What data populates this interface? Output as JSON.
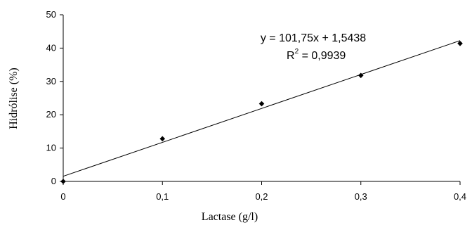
{
  "chart_data": {
    "type": "scatter",
    "title": "",
    "xlabel": "Lactase (g/l)",
    "ylabel": "Hidrólise (%)",
    "xlim": [
      0,
      0.4
    ],
    "ylim": [
      0,
      50
    ],
    "x_ticks": [
      0,
      0.1,
      0.2,
      0.3,
      0.4
    ],
    "x_tick_labels": [
      "0",
      "0,1",
      "0,2",
      "0,3",
      "0,4"
    ],
    "y_ticks": [
      0,
      10,
      20,
      30,
      40,
      50
    ],
    "y_tick_labels": [
      "0",
      "10",
      "20",
      "30",
      "40",
      "50"
    ],
    "grid": false,
    "series": [
      {
        "x": [
          0,
          0.1,
          0.2,
          0.3,
          0.4
        ],
        "y": [
          0,
          12.8,
          23.3,
          31.8,
          41.4
        ],
        "marker": "diamond",
        "color": "#000000"
      }
    ],
    "trendline": {
      "slope": 101.75,
      "intercept": 1.5438,
      "color": "#000000"
    },
    "annotations": {
      "equation": "y = 101,75x + 1,5438",
      "r2_prefix": "R",
      "r2_exponent": "2",
      "r2_value": " = 0,9939"
    }
  }
}
